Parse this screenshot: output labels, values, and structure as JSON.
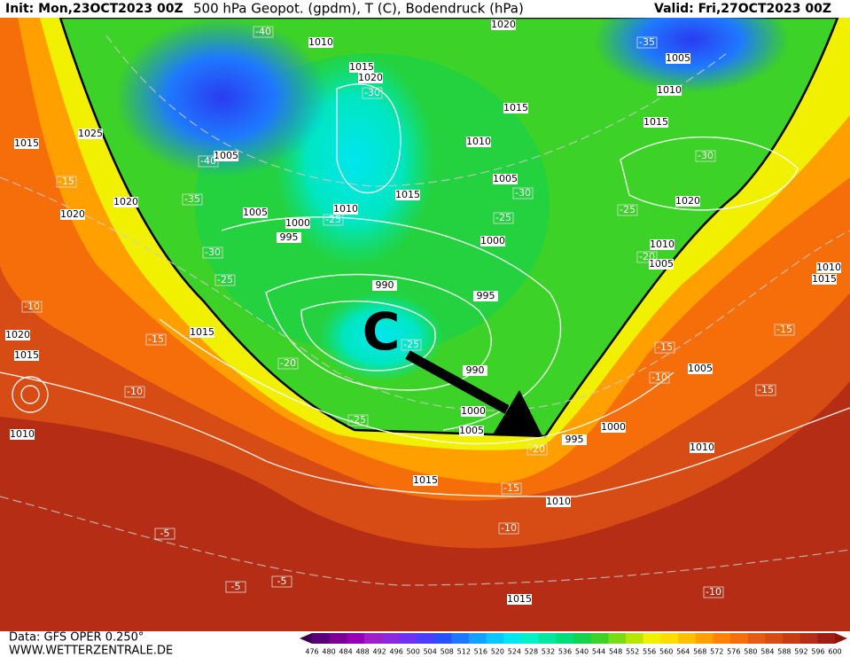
{
  "header": {
    "init": "Init: Mon,23OCT2023 00Z",
    "title": "500 hPa Geopot. (gpdm), T (C), Bodendruck (hPa)",
    "valid": "Valid: Fri,27OCT2023 00Z"
  },
  "footer": {
    "data": "Data: GFS OPER 0.250°",
    "site": "WWW.WETTERZENTRALE.DE"
  },
  "annotation": "C",
  "legend": {
    "labels": [
      476,
      480,
      484,
      488,
      492,
      496,
      500,
      504,
      508,
      512,
      516,
      520,
      524,
      528,
      532,
      536,
      540,
      544,
      548,
      552,
      556,
      560,
      564,
      568,
      572,
      576,
      580,
      584,
      588,
      592,
      596,
      600
    ],
    "colors": [
      "#3c0050",
      "#5a0078",
      "#7a0096",
      "#9600b4",
      "#a01ec8",
      "#8c28dc",
      "#6e32f0",
      "#4b3cff",
      "#2850ff",
      "#1e78ff",
      "#14a0ff",
      "#0ac8ff",
      "#00e6f0",
      "#00f0c8",
      "#00e6a0",
      "#00dc78",
      "#14d250",
      "#3cd228",
      "#78dc14",
      "#b4e600",
      "#f0f000",
      "#ffdc00",
      "#ffbe00",
      "#ffa000",
      "#ff8200",
      "#f56e0a",
      "#e65a14",
      "#d74b14",
      "#c83c14",
      "#b42d14",
      "#a01e14",
      "#8c140a"
    ]
  },
  "map_labels": {
    "pressure": [
      "1010",
      "1015",
      "1020",
      "1020",
      "1005",
      "1010",
      "1015",
      "1015",
      "1010",
      "1005",
      "1015",
      "1010",
      "1005",
      "1000",
      "995",
      "1000",
      "1010",
      "1005",
      "1020",
      "990",
      "995",
      "990",
      "1000",
      "1005",
      "995",
      "1000",
      "1005",
      "1010",
      "1015",
      "1025",
      "1020",
      "1020",
      "1015",
      "1020",
      "1015",
      "1010",
      "1015",
      "1010",
      "1015",
      "1010",
      "1015",
      "1005"
    ],
    "temperature": [
      "-40",
      "-35",
      "-30",
      "-30",
      "-40",
      "-35",
      "-30",
      "-25",
      "-25",
      "-25",
      "-30",
      "-25",
      "-15",
      "-10",
      "-15",
      "-20",
      "-25",
      "-25",
      "-20",
      "-15",
      "-10",
      "-15",
      "-10",
      "-15",
      "-15",
      "-10",
      "-5",
      "-5",
      "-5",
      "-10",
      "-20"
    ]
  }
}
